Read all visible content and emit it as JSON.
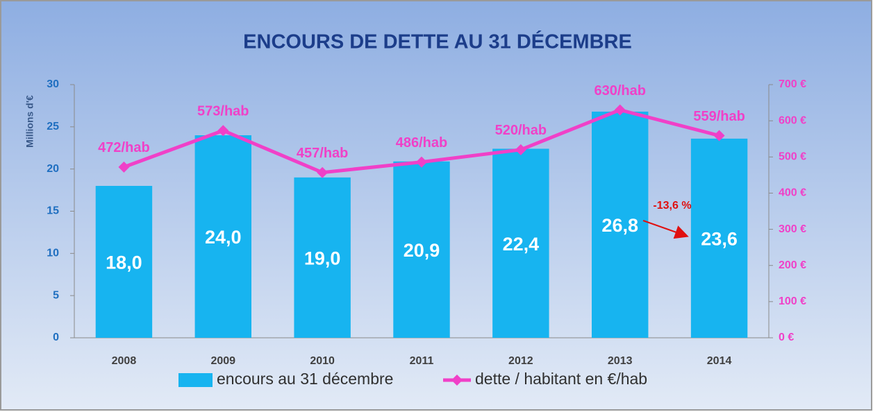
{
  "chart_data": {
    "type": "bar",
    "title": "ENCOURS DE DETTE AU 31 DÉCEMBRE",
    "y_label": "Millions d'€",
    "categories": [
      "2008",
      "2009",
      "2010",
      "2011",
      "2012",
      "2013",
      "2014"
    ],
    "series": [
      {
        "name": "encours au 31 décembre",
        "type": "bar",
        "color": "#17b4f0",
        "values": [
          18.0,
          24.0,
          19.0,
          20.9,
          22.4,
          26.8,
          23.6
        ],
        "value_labels": [
          "18,0",
          "24,0",
          "19,0",
          "20,9",
          "22,4",
          "26,8",
          "23,6"
        ]
      },
      {
        "name": "dette / habitant en €/hab",
        "type": "line",
        "axis": "y2",
        "color": "#f040c8",
        "values": [
          472,
          573,
          457,
          486,
          520,
          630,
          559
        ],
        "value_labels": [
          "472/hab",
          "573/hab",
          "457/hab",
          "486/hab",
          "520/hab",
          "630/hab",
          "559/hab"
        ]
      }
    ],
    "ylim": [
      0,
      30
    ],
    "yticks": [
      0,
      5,
      10,
      15,
      20,
      25,
      30
    ],
    "y2lim": [
      0,
      700
    ],
    "y2ticks": [
      {
        "value": 0,
        "label": "0 €"
      },
      {
        "value": 100,
        "label": "100 €"
      },
      {
        "value": 200,
        "label": "200 €"
      },
      {
        "value": 300,
        "label": "300 €"
      },
      {
        "value": 400,
        "label": "400 €"
      },
      {
        "value": 500,
        "label": "500 €"
      },
      {
        "value": 600,
        "label": "600 €"
      },
      {
        "value": 700,
        "label": "700 €"
      }
    ],
    "annotations": [
      {
        "text": "-13,6 %",
        "color": "#e01010"
      }
    ],
    "legend": "bottom"
  }
}
